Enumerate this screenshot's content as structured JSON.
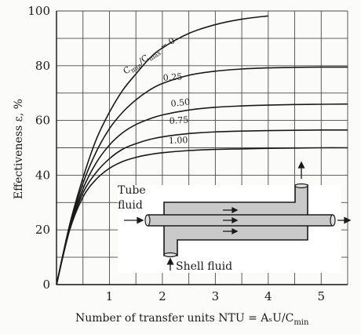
{
  "chart_data": {
    "type": "line",
    "title": "",
    "xlabel": "Number of transfer units NTU = AₛU/C",
    "xlabel_sub": "min",
    "ylabel": "Effectiveness ε, %",
    "xlim": [
      0,
      5.5
    ],
    "ylim": [
      0,
      100
    ],
    "x_ticks": [
      1,
      2,
      3,
      4,
      5
    ],
    "y_ticks": [
      0,
      20,
      40,
      60,
      80,
      100
    ],
    "grid": true,
    "series": [
      {
        "name": "Cmin/Cmax = 0",
        "label_prefix": "C",
        "label_sub1": "min",
        "label_mid": "/C",
        "label_sub2": "max",
        "label_suffix": " = 0",
        "x": [
          0,
          0.25,
          0.5,
          0.75,
          1.0,
          1.25,
          1.5,
          1.75,
          2.0,
          2.5,
          3.0,
          3.5,
          4.0,
          4.5
        ],
        "y": [
          0,
          22,
          39,
          53,
          63,
          71,
          77,
          82.5,
          86.5,
          91.8,
          95,
          97,
          98.2,
          98.9
        ]
      },
      {
        "name": "0.25",
        "label": "0.25",
        "x": [
          0,
          0.25,
          0.5,
          0.75,
          1.0,
          1.25,
          1.5,
          1.75,
          2.0,
          2.5,
          3.0,
          3.5,
          4.0,
          4.5,
          5.0,
          5.5
        ],
        "y": [
          0,
          21.5,
          37,
          48.5,
          57,
          63,
          67.5,
          71,
          73.5,
          76.5,
          78,
          78.8,
          79.2,
          79.4,
          79.5,
          79.5
        ]
      },
      {
        "name": "0.50",
        "label": "0.50",
        "x": [
          0,
          0.25,
          0.5,
          0.75,
          1.0,
          1.25,
          1.5,
          1.75,
          2.0,
          2.5,
          3.0,
          3.5,
          4.0,
          4.5,
          5.0,
          5.5
        ],
        "y": [
          0,
          21,
          35,
          44.5,
          51,
          55.5,
          58.5,
          60.5,
          62,
          63.8,
          64.8,
          65.3,
          65.6,
          65.8,
          65.9,
          66
        ]
      },
      {
        "name": "0.75",
        "label": "0.75",
        "x": [
          0,
          0.25,
          0.5,
          0.75,
          1.0,
          1.25,
          1.5,
          1.75,
          2.0,
          2.5,
          3.0,
          3.5,
          4.0,
          4.5,
          5.0,
          5.5
        ],
        "y": [
          0,
          20.5,
          33.5,
          41,
          46,
          49.5,
          51.5,
          53,
          54,
          55.2,
          55.8,
          56.1,
          56.3,
          56.4,
          56.5,
          56.5
        ]
      },
      {
        "name": "1.00",
        "label": "1.00",
        "x": [
          0,
          0.25,
          0.5,
          0.75,
          1.0,
          1.25,
          1.5,
          1.75,
          2.0,
          2.5,
          3.0,
          3.5,
          4.0,
          4.5,
          5.0,
          5.5
        ],
        "y": [
          0,
          20,
          32,
          38.5,
          42.5,
          45,
          46.5,
          47.5,
          48.2,
          49,
          49.4,
          49.6,
          49.8,
          49.9,
          50,
          50
        ]
      }
    ]
  },
  "inset": {
    "tube_label_line1": "Tube",
    "tube_label_line2": "fluid",
    "shell_label": "Shell fluid"
  },
  "colors": {
    "grid": "#4a4a4a",
    "curve": "#1a1a1a",
    "shell": "#c9c9c9",
    "text": "#1a1a1a"
  }
}
